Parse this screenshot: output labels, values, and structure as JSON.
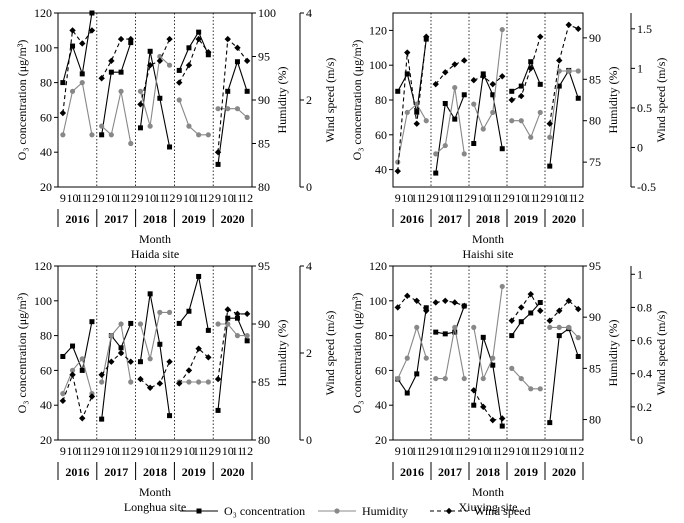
{
  "figure": {
    "legend": [
      {
        "key": "o3",
        "label": "O₃ concentration",
        "color": "#000000",
        "marker": "square",
        "dash": false
      },
      {
        "key": "humidity",
        "label": "Humidity",
        "color": "#888888",
        "marker": "circle",
        "dash": false
      },
      {
        "key": "wind",
        "label": "Wind speed",
        "color": "#000000",
        "marker": "diamond",
        "dash": true
      }
    ]
  },
  "chart_data": [
    {
      "type": "line",
      "title": "Haida site",
      "xlabel": "Month",
      "ylabel": "O₃ concentration (μg/m³)",
      "ylabel_right1": "Humidity (%)",
      "ylabel_right2": "Wind speed (m/s)",
      "years": [
        "2016",
        "2017",
        "2018",
        "2019",
        "2020"
      ],
      "months": [
        "9",
        "10",
        "11",
        "12"
      ],
      "ylim": [
        20,
        120
      ],
      "yticks": [
        20,
        40,
        60,
        80,
        100,
        120
      ],
      "hum_lim": [
        80,
        100
      ],
      "hum_ticks": [
        80,
        85,
        90,
        95,
        100
      ],
      "wind_lim": [
        0,
        4
      ],
      "wind_ticks": [
        0,
        2,
        4
      ],
      "grid": false,
      "series": [
        {
          "key": "o3",
          "name": "O₃ concentration",
          "values": [
            80,
            101,
            85,
            120,
            50,
            86,
            86,
            103,
            54,
            98,
            71,
            43,
            87,
            100,
            109,
            96,
            33,
            75,
            92,
            75
          ]
        },
        {
          "key": "humidity",
          "name": "Humidity",
          "values": [
            86,
            91,
            92,
            86,
            87,
            86,
            91,
            85,
            91,
            87,
            95,
            94,
            90,
            87,
            86,
            86,
            89,
            89,
            89,
            88
          ]
        },
        {
          "key": "wind",
          "name": "Wind speed",
          "values": [
            1.7,
            3.6,
            3.3,
            3.6,
            2.5,
            2.9,
            3.4,
            3.4,
            1.9,
            2.8,
            2.9,
            3.4,
            2.4,
            2.8,
            3.4,
            3.1,
            0.8,
            3.4,
            3.2,
            2.9
          ]
        }
      ]
    },
    {
      "type": "line",
      "title": "Haishi site",
      "xlabel": "Month",
      "ylabel": "O₃ concentration (μg/m³)",
      "ylabel_right1": "Humidity (%)",
      "ylabel_right2": "Wind speed (m/s)",
      "years": [
        "2016",
        "2017",
        "2018",
        "2019",
        "2020"
      ],
      "months": [
        "9",
        "10",
        "11",
        "12"
      ],
      "ylim": [
        30,
        130
      ],
      "yticks": [
        40,
        60,
        80,
        100,
        120
      ],
      "hum_lim": [
        72,
        93
      ],
      "hum_ticks": [
        75,
        80,
        85,
        90
      ],
      "wind_lim": [
        -0.5,
        1.7
      ],
      "wind_ticks": [
        -0.5,
        0.0,
        0.5,
        1.0,
        1.5
      ],
      "grid": false,
      "series": [
        {
          "key": "o3",
          "name": "O₃ concentration",
          "values": [
            85,
            95,
            73,
            115,
            38,
            78,
            69,
            83,
            55,
            95,
            83,
            52,
            85,
            88,
            102,
            89,
            42,
            88,
            97,
            81
          ]
        },
        {
          "key": "humidity",
          "name": "Humidity",
          "values": [
            75,
            81,
            82,
            80,
            76,
            77,
            84,
            76,
            82,
            79,
            81,
            91,
            80,
            80,
            78,
            81,
            78,
            86,
            86,
            86
          ]
        },
        {
          "key": "wind",
          "name": "Wind speed",
          "values": [
            -0.3,
            1.2,
            0.3,
            1.4,
            0.8,
            0.95,
            1.05,
            1.1,
            0.85,
            0.9,
            0.8,
            0.9,
            0.6,
            0.65,
            1.0,
            1.4,
            0.3,
            1.1,
            1.55,
            1.5
          ]
        }
      ]
    },
    {
      "type": "line",
      "title": "Longhua site",
      "xlabel": "Month",
      "ylabel": "O₃ concentration (μg/m³)",
      "ylabel_right1": "Humidity (%)",
      "ylabel_right2": "Wind speed (m/s)",
      "years": [
        "2016",
        "2017",
        "2018",
        "2019",
        "2020"
      ],
      "months": [
        "9",
        "10",
        "11",
        "12"
      ],
      "ylim": [
        20,
        120
      ],
      "yticks": [
        20,
        40,
        60,
        80,
        100,
        120
      ],
      "hum_lim": [
        80,
        95
      ],
      "hum_ticks": [
        80,
        85,
        90,
        95
      ],
      "wind_lim": [
        0,
        4
      ],
      "wind_ticks": [
        0,
        2,
        4
      ],
      "grid": false,
      "series": [
        {
          "key": "o3",
          "name": "O₃ concentration",
          "values": [
            68,
            74,
            60,
            88,
            32,
            80,
            73,
            87,
            65,
            104,
            75,
            34,
            87,
            94,
            114,
            83,
            37,
            90,
            90,
            77
          ]
        },
        {
          "key": "humidity",
          "name": "Humidity",
          "values": [
            84,
            86,
            87,
            84,
            85,
            89,
            90,
            85,
            90,
            87,
            91,
            91,
            85,
            85,
            85,
            85,
            90,
            90,
            89,
            89
          ]
        },
        {
          "key": "wind",
          "name": "Wind speed",
          "values": [
            0.9,
            1.5,
            0.5,
            1.0,
            1.5,
            1.8,
            2.0,
            1.8,
            1.4,
            1.2,
            1.3,
            1.8,
            1.3,
            1.6,
            2.1,
            1.9,
            1.4,
            3.0,
            2.9,
            2.9
          ]
        }
      ]
    },
    {
      "type": "line",
      "title": "Xiuying site",
      "xlabel": "Month",
      "ylabel": "O₃ concentration (μg/m³)",
      "ylabel_right1": "Humidity (%)",
      "ylabel_right2": "Wind speed (m/s)",
      "years": [
        "2016",
        "2017",
        "2018",
        "2019",
        "2020"
      ],
      "months": [
        "9",
        "10",
        "11",
        "12"
      ],
      "ylim": [
        20,
        120
      ],
      "yticks": [
        20,
        40,
        60,
        80,
        100,
        120
      ],
      "hum_lim": [
        78,
        95
      ],
      "hum_ticks": [
        80,
        85,
        90,
        95
      ],
      "wind_lim": [
        0,
        1.05
      ],
      "wind_ticks": [
        0,
        0.2,
        0.4,
        0.6,
        0.8,
        1.0
      ],
      "grid": false,
      "series": [
        {
          "key": "o3",
          "name": "O₃ concentration",
          "values": [
            55,
            47,
            58,
            96,
            82,
            81,
            82,
            97,
            40,
            79,
            63,
            28,
            80,
            88,
            93,
            99,
            30,
            80,
            84,
            68
          ]
        },
        {
          "key": "humidity",
          "name": "Humidity",
          "values": [
            84,
            86,
            89,
            86,
            84,
            84,
            89,
            84,
            89,
            84,
            86,
            93,
            85,
            84,
            83,
            83,
            89,
            89,
            89,
            88
          ]
        },
        {
          "key": "wind",
          "name": "Wind speed",
          "values": [
            0.8,
            0.87,
            0.84,
            0.78,
            0.83,
            0.84,
            0.83,
            0.81,
            0.3,
            0.2,
            0.12,
            0.13,
            0.72,
            0.8,
            0.88,
            0.78,
            0.72,
            0.78,
            0.84,
            0.79
          ]
        }
      ]
    }
  ]
}
